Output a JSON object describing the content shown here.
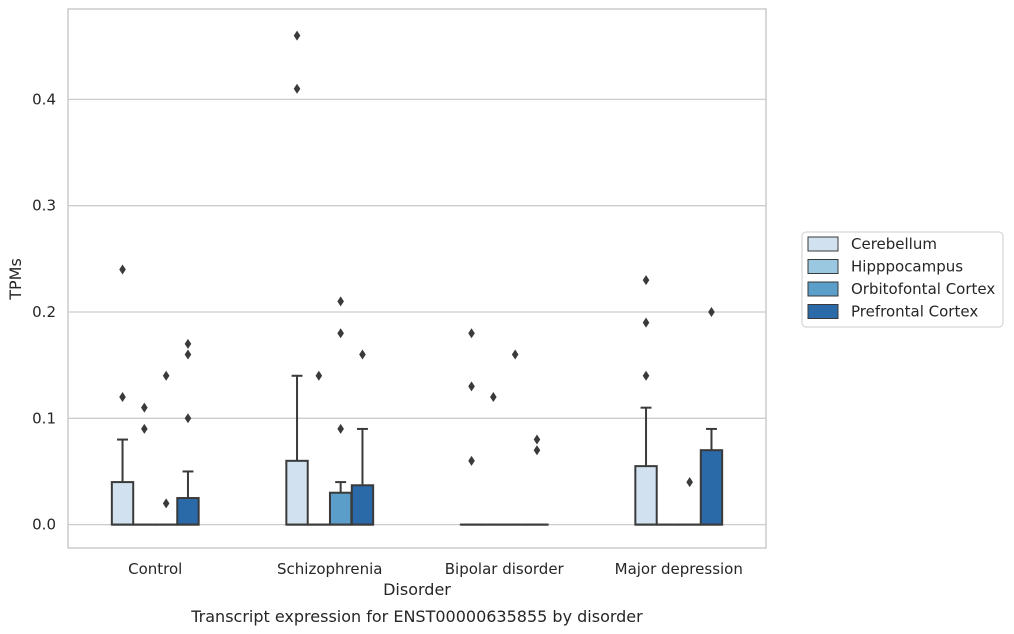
{
  "chart_data": {
    "type": "boxplot",
    "title": "Transcript expression for ENST00000635855 by disorder",
    "xlabel": "Disorder",
    "ylabel": "TPMs",
    "ylim": [
      -0.022,
      0.485
    ],
    "yticks": [
      0.0,
      0.1,
      0.2,
      0.3,
      0.4
    ],
    "ytick_labels": [
      "0.0",
      "0.1",
      "0.2",
      "0.3",
      "0.4"
    ],
    "grid": "horizontal",
    "legend_position": "right",
    "categories": [
      "Control",
      "Schizophrenia",
      "Bipolar disorder",
      "Major depression"
    ],
    "series": [
      {
        "name": "Cerebellum",
        "color": "#d2e1f0",
        "boxes": [
          {
            "q1": 0.0,
            "median": 0.0,
            "q3": 0.04,
            "whisker_low": 0.0,
            "whisker_high": 0.08,
            "outliers": [
              0.24,
              0.12
            ]
          },
          {
            "q1": 0.0,
            "median": 0.0,
            "q3": 0.06,
            "whisker_low": 0.0,
            "whisker_high": 0.14,
            "outliers": [
              0.46,
              0.41
            ]
          },
          {
            "q1": 0.0,
            "median": 0.0,
            "q3": 0.0,
            "whisker_low": 0.0,
            "whisker_high": 0.0,
            "outliers": [
              0.18,
              0.13,
              0.06
            ]
          },
          {
            "q1": 0.0,
            "median": 0.0,
            "q3": 0.055,
            "whisker_low": 0.0,
            "whisker_high": 0.11,
            "outliers": [
              0.23,
              0.19,
              0.14
            ]
          }
        ]
      },
      {
        "name": "Hipppocampus",
        "color": "#9ac8e0",
        "boxes": [
          {
            "q1": 0.0,
            "median": 0.0,
            "q3": 0.0,
            "whisker_low": 0.0,
            "whisker_high": 0.0,
            "outliers": [
              0.11,
              0.09
            ]
          },
          {
            "q1": 0.0,
            "median": 0.0,
            "q3": 0.0,
            "whisker_low": 0.0,
            "whisker_high": 0.0,
            "outliers": [
              0.14
            ]
          },
          {
            "q1": 0.0,
            "median": 0.0,
            "q3": 0.0,
            "whisker_low": 0.0,
            "whisker_high": 0.0,
            "outliers": [
              0.12
            ]
          },
          {
            "q1": 0.0,
            "median": 0.0,
            "q3": 0.0,
            "whisker_low": 0.0,
            "whisker_high": 0.0,
            "outliers": []
          }
        ]
      },
      {
        "name": "Orbitofontal Cortex",
        "color": "#5a9ec9",
        "boxes": [
          {
            "q1": 0.0,
            "median": 0.0,
            "q3": 0.0,
            "whisker_low": 0.0,
            "whisker_high": 0.0,
            "outliers": [
              0.14,
              0.02
            ]
          },
          {
            "q1": 0.0,
            "median": 0.0,
            "q3": 0.03,
            "whisker_low": 0.0,
            "whisker_high": 0.04,
            "outliers": [
              0.21,
              0.18,
              0.09
            ]
          },
          {
            "q1": 0.0,
            "median": 0.0,
            "q3": 0.0,
            "whisker_low": 0.0,
            "whisker_high": 0.0,
            "outliers": [
              0.16
            ]
          },
          {
            "q1": 0.0,
            "median": 0.0,
            "q3": 0.0,
            "whisker_low": 0.0,
            "whisker_high": 0.0,
            "outliers": [
              0.04
            ]
          }
        ]
      },
      {
        "name": "Prefrontal Cortex",
        "color": "#2b6aa8",
        "boxes": [
          {
            "q1": 0.0,
            "median": 0.0,
            "q3": 0.025,
            "whisker_low": 0.0,
            "whisker_high": 0.05,
            "outliers": [
              0.17,
              0.16,
              0.1
            ]
          },
          {
            "q1": 0.0,
            "median": 0.0,
            "q3": 0.037,
            "whisker_low": 0.0,
            "whisker_high": 0.09,
            "outliers": [
              0.16
            ]
          },
          {
            "q1": 0.0,
            "median": 0.0,
            "q3": 0.0,
            "whisker_low": 0.0,
            "whisker_high": 0.0,
            "outliers": [
              0.08,
              0.07
            ]
          },
          {
            "q1": 0.0,
            "median": 0.0,
            "q3": 0.07,
            "whisker_low": 0.0,
            "whisker_high": 0.09,
            "outliers": [
              0.2
            ]
          }
        ]
      }
    ]
  }
}
